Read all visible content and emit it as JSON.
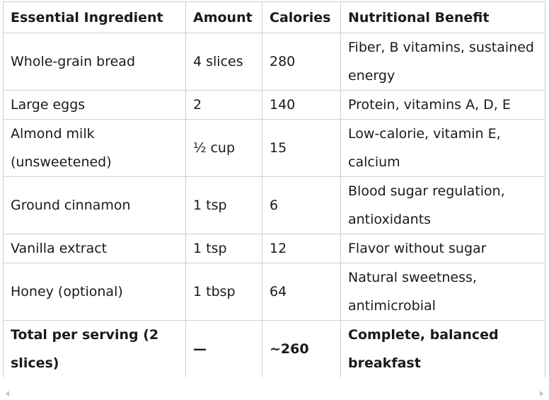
{
  "table": {
    "headers": [
      "Essential Ingredient",
      "Amount",
      "Calories",
      "Nutritional Benefit"
    ],
    "rows": [
      {
        "ingredient": "Whole-grain bread",
        "amount": "4 slices",
        "calories": "280",
        "benefit": "Fiber, B vitamins, sustained energy"
      },
      {
        "ingredient": "Large eggs",
        "amount": "2",
        "calories": "140",
        "benefit": "Protein, vitamins A, D, E"
      },
      {
        "ingredient": "Almond milk (unsweetened)",
        "amount": "½ cup",
        "calories": "15",
        "benefit": "Low-calorie, vitamin E, calcium"
      },
      {
        "ingredient": "Ground cinnamon",
        "amount": "1 tsp",
        "calories": "6",
        "benefit": "Blood sugar regulation, antioxidants"
      },
      {
        "ingredient": "Vanilla extract",
        "amount": "1 tsp",
        "calories": "12",
        "benefit": "Flavor without sugar"
      },
      {
        "ingredient": "Honey (optional)",
        "amount": "1 tbsp",
        "calories": "64",
        "benefit": "Natural sweetness, antimicrobial"
      }
    ],
    "total": {
      "ingredient": "Total per serving (2 slices)",
      "amount": "—",
      "calories": "~260",
      "benefit": "Complete, balanced breakfast"
    }
  },
  "colors": {
    "border": "#cfcfcf",
    "text": "#1a1a1a",
    "scroll_arrow": "#c4c4c4"
  },
  "icons": {
    "scroll_left": "scroll-left-arrow-icon",
    "scroll_right": "scroll-right-arrow-icon"
  }
}
